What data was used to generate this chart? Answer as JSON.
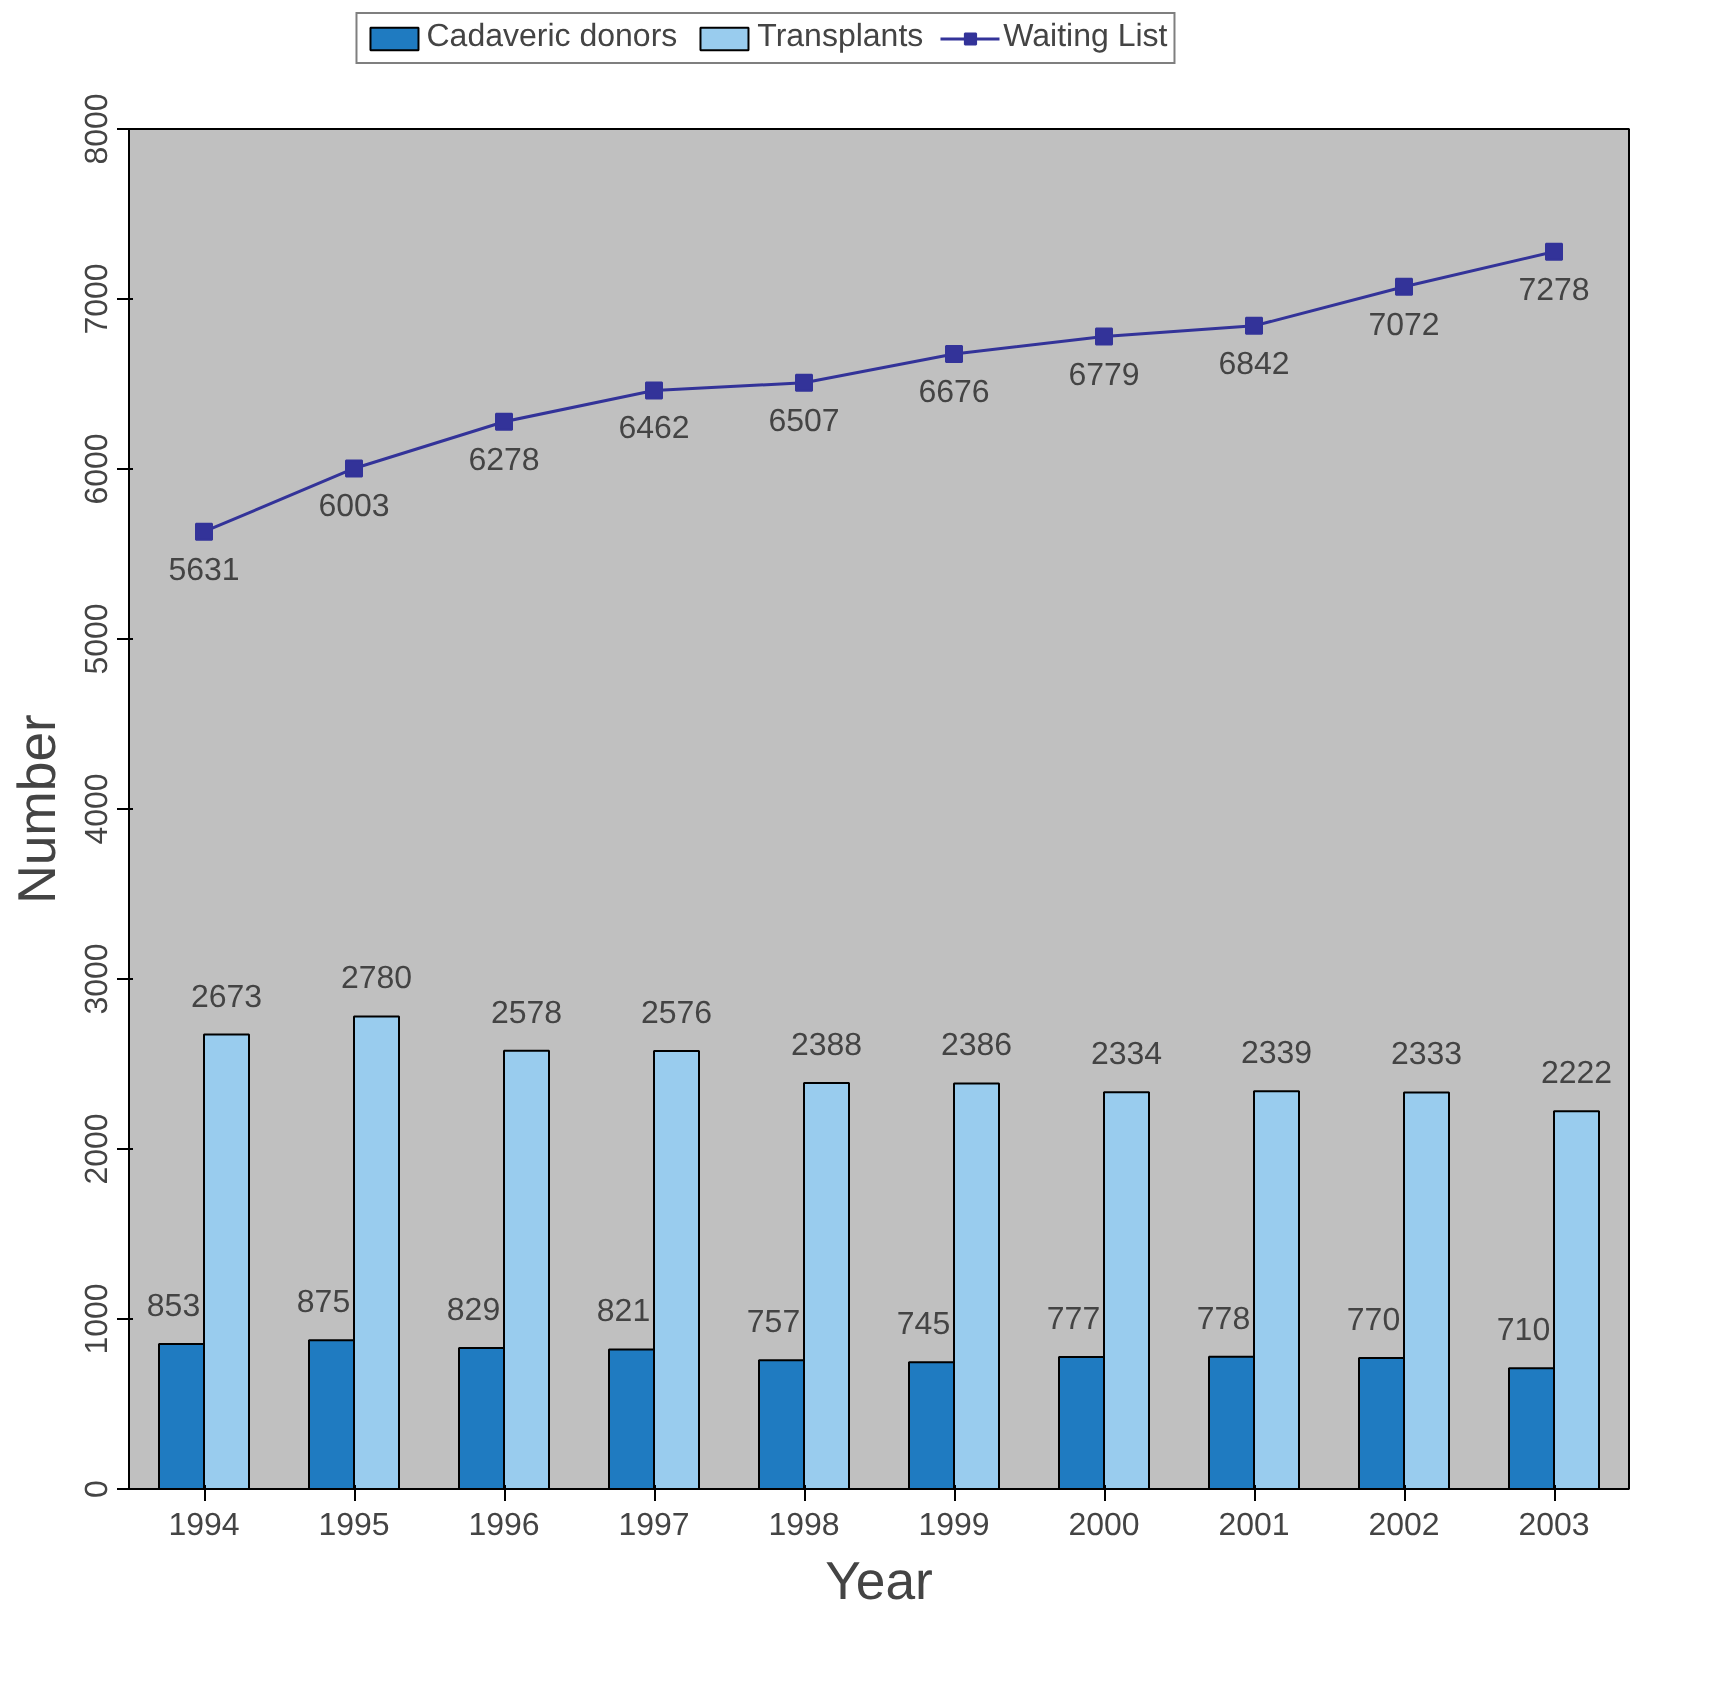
{
  "chart_data": {
    "type": "bar",
    "xlabel": "Year",
    "ylabel": "Number",
    "categories": [
      "1994",
      "1995",
      "1996",
      "1997",
      "1998",
      "1999",
      "2000",
      "2001",
      "2002",
      "2003"
    ],
    "series": [
      {
        "name": "Cadaveric donors",
        "color": "#1f7bc1",
        "values": [
          853,
          875,
          829,
          821,
          757,
          745,
          777,
          778,
          770,
          710
        ]
      },
      {
        "name": "Transplants",
        "color": "#99ccee",
        "values": [
          2673,
          2780,
          2578,
          2576,
          2388,
          2386,
          2334,
          2339,
          2333,
          2222
        ]
      },
      {
        "name": "Waiting List",
        "type": "line",
        "color": "#333399",
        "marker": "square",
        "values": [
          5631,
          6003,
          6278,
          6462,
          6507,
          6676,
          6779,
          6842,
          7072,
          7278
        ]
      }
    ],
    "ylim": [
      0,
      8000
    ],
    "yticks": [
      0,
      1000,
      2000,
      3000,
      4000,
      5000,
      6000,
      7000,
      8000
    ],
    "data_labels": true,
    "grid": false,
    "legend": "top"
  }
}
